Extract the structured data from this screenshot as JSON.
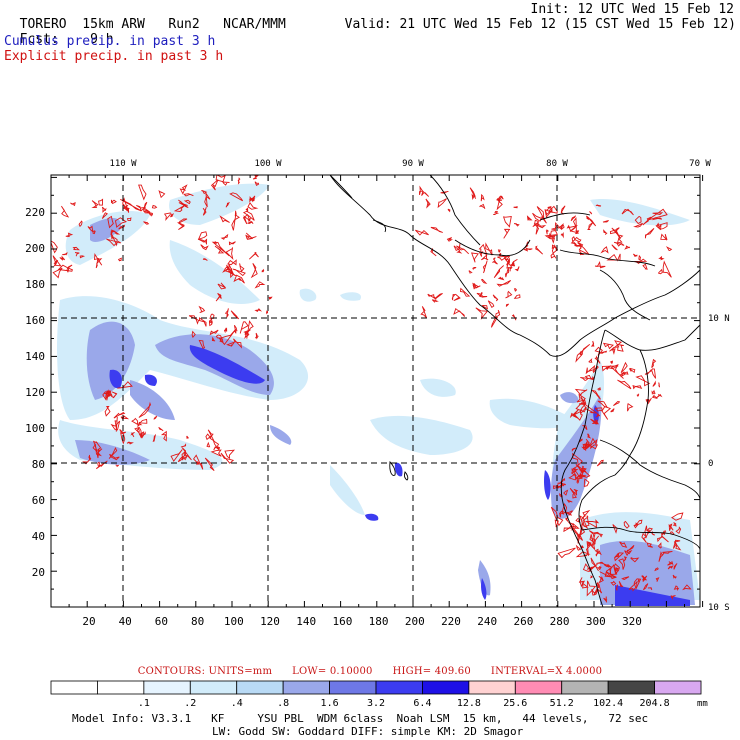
{
  "header": {
    "model": "TORERO  15km ARW",
    "run": "Run2",
    "org": "NCAR/MMM",
    "init": "Init: 12 UTC Wed 15 Feb 12",
    "fcst_label": "Fcst:",
    "fcst_value": "9 h",
    "valid": "Valid: 21 UTC Wed 15 Feb 12 (15 CST Wed 15 Feb 12)",
    "field1": "Cumulus precip. in past 3 h",
    "field2": "Explicit precip. in past 3 h"
  },
  "top_lon_labels": [
    "110 W",
    "100 W",
    "90 W",
    "80 W",
    "70 W"
  ],
  "right_lat_labels": [
    "10 N",
    "0",
    "10 S"
  ],
  "x_ticks": [
    "20",
    "40",
    "60",
    "80",
    "100",
    "120",
    "140",
    "160",
    "180",
    "200",
    "220",
    "240",
    "260",
    "280",
    "300",
    "320"
  ],
  "y_ticks": [
    "20",
    "40",
    "60",
    "80",
    "100",
    "120",
    "140",
    "160",
    "180",
    "200",
    "220"
  ],
  "contour_info": {
    "units": "CONTOURS:  UNITS=mm",
    "low": "LOW= 0.10000",
    "high": "HIGH=  409.60",
    "interval": "INTERVAL=X  4.0000"
  },
  "colorbar": {
    "labels": [
      ".1",
      ".2",
      ".4",
      ".8",
      "1.6",
      "3.2",
      "6.4",
      "12.8",
      "25.6",
      "51.2",
      "102.4",
      "204.8"
    ],
    "unit": "mm",
    "colors": [
      "#ffffff",
      "#ffffff",
      "#e6f4ff",
      "#d2ecfa",
      "#b9daf5",
      "#9aa8ea",
      "#6e78e6",
      "#3c3cf0",
      "#1e10e6",
      "#ffd2d2",
      "#ff8cb4",
      "#b4b4b4",
      "#464646",
      "#d8a8f0"
    ]
  },
  "model_info": {
    "line1": "Model Info: V3.3.1   KF     YSU PBL  WDM 6class  Noah LSM  15 km,   44 levels,   72 sec",
    "line2": "LW: Godd SW: Goddard DIFF: simple KM: 2D Smagor"
  }
}
